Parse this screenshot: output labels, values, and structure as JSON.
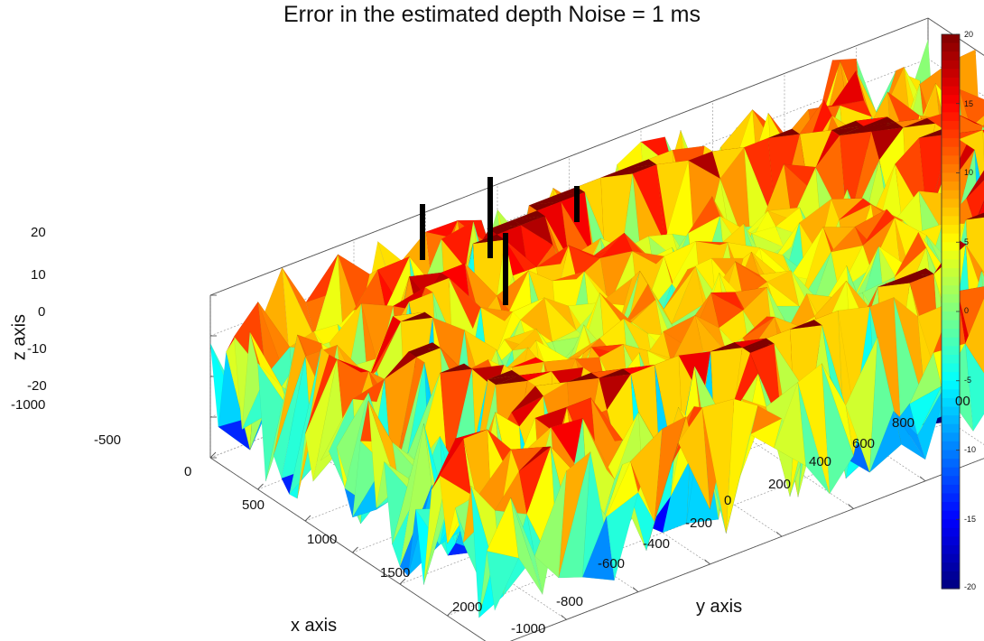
{
  "chart_data": {
    "type": "surface3d",
    "title": "Error in the estimated depth Noise = 1 ms",
    "xlabel": "x  axis",
    "ylabel": "y  axis",
    "zlabel": "z  axis",
    "xlim": [
      -1000,
      2000
    ],
    "ylim": [
      -1000,
      1000
    ],
    "zlim": [
      -20,
      20
    ],
    "x_ticks": [
      -1000,
      -500,
      0,
      500,
      1000,
      1500,
      2000
    ],
    "y_ticks": [
      -1000,
      -800,
      -600,
      -400,
      -200,
      0,
      200,
      400,
      600,
      800
    ],
    "z_ticks": [
      -20,
      -10,
      0,
      10,
      20
    ],
    "x_tick_labels": [
      "-1000",
      "-500",
      "0",
      "500",
      "1000",
      "1500",
      "2000"
    ],
    "y_tick_labels": [
      "-1000",
      "-800",
      "-600",
      "-400",
      "-200",
      "0",
      "200",
      "400",
      "600",
      "800"
    ],
    "z_tick_labels": [
      "-20",
      "-10",
      "0",
      "10",
      "20"
    ],
    "y_tick_partial": "00",
    "colorbar": {
      "colormap": "jet",
      "range": [
        -20,
        20
      ],
      "ticks": [
        20,
        15,
        10,
        5,
        0,
        -5,
        -10,
        -15,
        -20
      ],
      "tick_labels": [
        "20",
        "15",
        "10",
        "5",
        "0",
        "-5",
        "-10",
        "-15",
        "-20"
      ]
    },
    "features": {
      "noise_level_ms": 1,
      "error_range": [
        -20,
        20
      ],
      "saturated_walls": "error clipped at +20 along a curved ring boundary, -20 on its inner faces",
      "central_region": "noisy errors mostly between -5 and 10",
      "station_markers": 4
    }
  }
}
